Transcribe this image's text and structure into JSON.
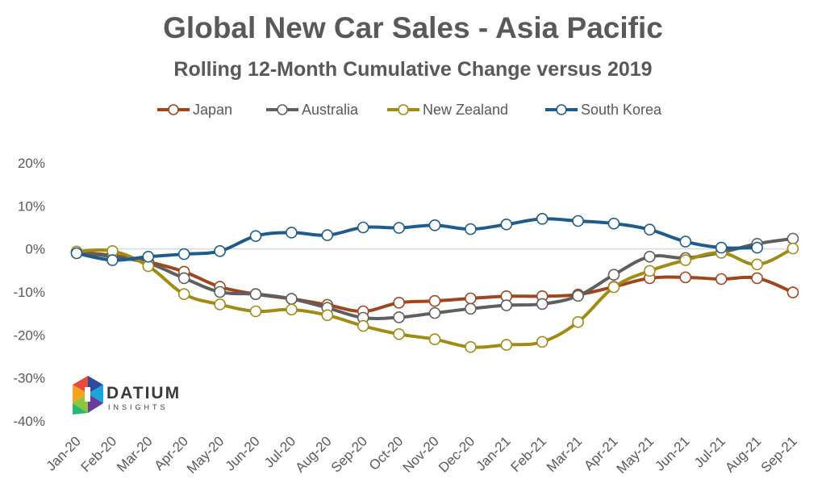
{
  "chart_data": {
    "type": "line",
    "title": "Global New Car Sales - Asia Pacific",
    "subtitle": "Rolling 12-Month Cumulative Change versus 2019",
    "categories": [
      "Jan-20",
      "Feb-20",
      "Mar-20",
      "Apr-20",
      "May-20",
      "Jun-20",
      "Jul-20",
      "Aug-20",
      "Sep-20",
      "Oct-20",
      "Nov-20",
      "Dec-20",
      "Jan-21",
      "Feb-21",
      "Mar-21",
      "Apr-21",
      "May-21",
      "Jun-21",
      "Jul-21",
      "Aug-21",
      "Sep-21"
    ],
    "yticks": [
      "20%",
      "10%",
      "0%",
      "-10%",
      "-20%",
      "-30%",
      "-40%"
    ],
    "ylim": [
      -40,
      20
    ],
    "grid": false,
    "legend_position": "top",
    "series": [
      {
        "name": "Japan",
        "color": "#A0461E",
        "values": [
          -0.8,
          -1.5,
          -3.0,
          -5.3,
          -8.8,
          -10.5,
          -11.6,
          -13.0,
          -14.5,
          -12.5,
          -12.1,
          -11.5,
          -11.0,
          -11.0,
          -10.6,
          -8.8,
          -6.8,
          -6.6,
          -7.0,
          -6.8,
          -10.1
        ]
      },
      {
        "name": "Australia",
        "color": "#5F5F5F",
        "values": [
          -0.8,
          -1.8,
          -3.3,
          -6.8,
          -10.0,
          -10.5,
          -11.6,
          -13.7,
          -16.0,
          -15.9,
          -14.9,
          -13.9,
          -13.1,
          -12.8,
          -10.9,
          -6.0,
          -1.8,
          -2.1,
          -0.8,
          1.2,
          2.4
        ]
      },
      {
        "name": "New Zealand",
        "color": "#A08C14",
        "values": [
          -0.6,
          -0.5,
          -4.0,
          -10.5,
          -12.9,
          -14.5,
          -14.1,
          -15.4,
          -17.9,
          -19.8,
          -21.0,
          -22.8,
          -22.3,
          -21.6,
          -17.0,
          -8.9,
          -5.1,
          -2.6,
          -0.9,
          -3.6,
          0.1
        ]
      },
      {
        "name": "South Korea",
        "color": "#1F5C8B",
        "values": [
          -1.0,
          -2.6,
          -1.8,
          -1.2,
          -0.5,
          3.0,
          3.8,
          3.2,
          5.0,
          4.9,
          5.5,
          4.6,
          5.7,
          7.0,
          6.5,
          5.9,
          4.5,
          1.7,
          0.3,
          0.3,
          null
        ]
      }
    ]
  },
  "logo": {
    "name": "DATIUM",
    "sub": "INSIGHTS"
  }
}
